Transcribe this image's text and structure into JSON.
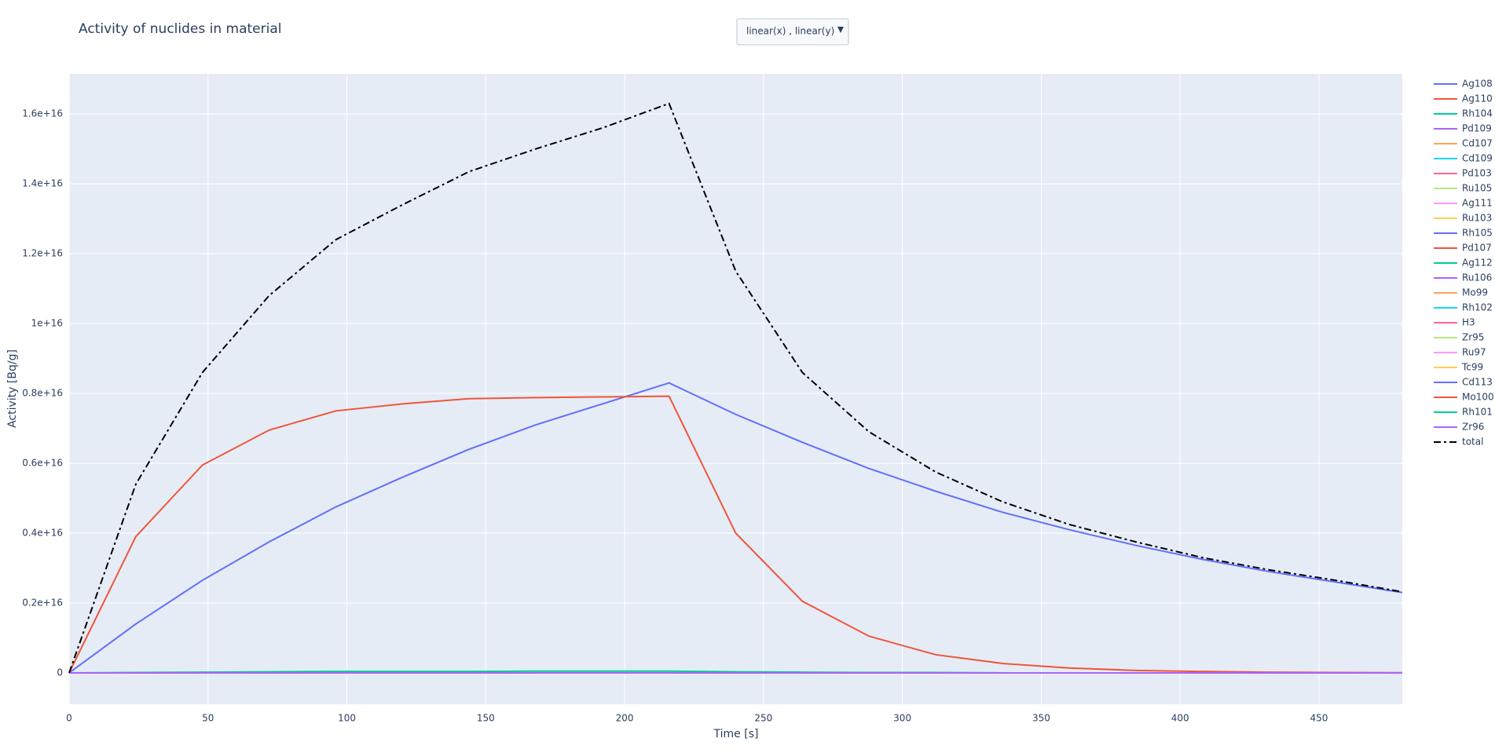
{
  "chart_data": {
    "type": "line",
    "title": "Activity of nuclides in material",
    "dropdown_label": "linear(x) , linear(y)",
    "x_label": "Time [s]",
    "y_label": "Activity [Bq/g]",
    "x": [
      0,
      24,
      48,
      72,
      96,
      120,
      144,
      168,
      192,
      216,
      240,
      264,
      288,
      312,
      336,
      360,
      384,
      408,
      432,
      456,
      480
    ],
    "xlim": [
      0,
      480
    ],
    "xticks": [
      0,
      50,
      100,
      150,
      200,
      250,
      300,
      350,
      400,
      450
    ],
    "ylim": [
      -900000000000000.0,
      1.715e+16
    ],
    "yticks": [
      0,
      {
        "value": 2000000000000000.0,
        "label": "0.2e+16"
      },
      {
        "value": 4000000000000000.0,
        "label": "0.4e+16"
      },
      {
        "value": 6000000000000000.0,
        "label": "0.6e+16"
      },
      {
        "value": 8000000000000000.0,
        "label": "0.8e+16"
      },
      {
        "value": 1e+16,
        "label": "1e+16"
      },
      {
        "value": 1.2e+16,
        "label": "1.2e+16"
      },
      {
        "value": 1.4e+16,
        "label": "1.4e+16"
      },
      {
        "value": 1.6e+16,
        "label": "1.6e+16"
      }
    ],
    "grid": true,
    "legend": "right",
    "series": [
      {
        "name": "Ag108",
        "color": "#636efa",
        "values": [
          0,
          0,
          0,
          0,
          0,
          0,
          0,
          0,
          0,
          0,
          0,
          0,
          0,
          0,
          0,
          0,
          0,
          0,
          0,
          0,
          0
        ]
      },
      {
        "name": "Ag110",
        "color": "#EF553B",
        "values": [
          0,
          0,
          0,
          0,
          0,
          0,
          0,
          0,
          0,
          0,
          0,
          0,
          0,
          0,
          0,
          0,
          0,
          0,
          0,
          0,
          0
        ]
      },
      {
        "name": "Rh104",
        "color": "#00cc96",
        "values": [
          0,
          10000000000000.0,
          20000000000000.0,
          30000000000000.0,
          40000000000000.0,
          40000000000000.0,
          40000000000000.0,
          50000000000000.0,
          50000000000000.0,
          50000000000000.0,
          30000000000000.0,
          20000000000000.0,
          10000000000000.0,
          10000000000000.0,
          0,
          0,
          0,
          0,
          0,
          0,
          0
        ]
      },
      {
        "name": "Pd109",
        "color": "#ab63fa",
        "values": [
          0,
          0,
          0,
          0,
          0,
          0,
          0,
          0,
          0,
          0,
          0,
          0,
          0,
          0,
          0,
          0,
          0,
          0,
          0,
          0,
          0
        ]
      },
      {
        "name": "Cd107",
        "color": "#FFA15A",
        "values": [
          0,
          0,
          0,
          0,
          0,
          0,
          0,
          0,
          0,
          0,
          0,
          0,
          0,
          0,
          0,
          0,
          0,
          0,
          0,
          0,
          0
        ]
      },
      {
        "name": "Cd109",
        "color": "#19d3f3",
        "values": [
          0,
          0,
          0,
          0,
          0,
          0,
          0,
          0,
          0,
          0,
          0,
          0,
          0,
          0,
          0,
          0,
          0,
          0,
          0,
          0,
          0
        ]
      },
      {
        "name": "Pd103",
        "color": "#FF6692",
        "values": [
          0,
          0,
          0,
          0,
          0,
          0,
          0,
          0,
          0,
          0,
          0,
          0,
          0,
          0,
          0,
          0,
          0,
          0,
          0,
          0,
          0
        ]
      },
      {
        "name": "Ru105",
        "color": "#B6E880",
        "values": [
          0,
          0,
          0,
          0,
          0,
          0,
          0,
          0,
          0,
          0,
          0,
          0,
          0,
          0,
          0,
          0,
          0,
          0,
          0,
          0,
          0
        ]
      },
      {
        "name": "Ag111",
        "color": "#FF97FF",
        "values": [
          0,
          0,
          0,
          0,
          0,
          0,
          0,
          0,
          0,
          0,
          0,
          0,
          0,
          0,
          0,
          0,
          0,
          0,
          0,
          0,
          0
        ]
      },
      {
        "name": "Ru103",
        "color": "#FECB52",
        "values": [
          0,
          0,
          0,
          0,
          0,
          0,
          0,
          0,
          0,
          0,
          0,
          0,
          0,
          0,
          0,
          0,
          0,
          0,
          0,
          0,
          0
        ]
      },
      {
        "name": "Rh105",
        "color": "#636efa",
        "values": [
          0,
          0,
          0,
          0,
          0,
          0,
          0,
          0,
          0,
          0,
          0,
          0,
          0,
          0,
          0,
          0,
          0,
          0,
          0,
          0,
          0
        ]
      },
      {
        "name": "Pd107",
        "color": "#EF553B",
        "values": [
          0,
          0,
          0,
          0,
          0,
          0,
          0,
          0,
          0,
          0,
          0,
          0,
          0,
          0,
          0,
          0,
          0,
          0,
          0,
          0,
          0
        ]
      },
      {
        "name": "Ag112",
        "color": "#00cc96",
        "values": [
          0,
          0,
          0,
          0,
          0,
          0,
          0,
          0,
          0,
          0,
          0,
          0,
          0,
          0,
          0,
          0,
          0,
          0,
          0,
          0,
          0
        ]
      },
      {
        "name": "Ru106",
        "color": "#ab63fa",
        "values": [
          0,
          0,
          0,
          0,
          0,
          0,
          0,
          0,
          0,
          0,
          0,
          0,
          0,
          0,
          0,
          0,
          0,
          0,
          0,
          0,
          0
        ]
      },
      {
        "name": "Mo99",
        "color": "#FFA15A",
        "values": [
          0,
          0,
          0,
          0,
          0,
          0,
          0,
          0,
          0,
          0,
          0,
          0,
          0,
          0,
          0,
          0,
          0,
          0,
          0,
          0,
          0
        ]
      },
      {
        "name": "Rh102",
        "color": "#19d3f3",
        "values": [
          0,
          0,
          0,
          0,
          0,
          0,
          0,
          0,
          0,
          0,
          0,
          0,
          0,
          0,
          0,
          0,
          0,
          0,
          0,
          0,
          0
        ]
      },
      {
        "name": "H3",
        "color": "#FF6692",
        "values": [
          0,
          0,
          0,
          0,
          0,
          0,
          0,
          0,
          0,
          0,
          0,
          0,
          0,
          0,
          0,
          0,
          0,
          0,
          0,
          0,
          0
        ]
      },
      {
        "name": "Zr95",
        "color": "#B6E880",
        "values": [
          0,
          0,
          0,
          0,
          0,
          0,
          0,
          0,
          0,
          0,
          0,
          0,
          0,
          0,
          0,
          0,
          0,
          0,
          0,
          0,
          0
        ]
      },
      {
        "name": "Ru97",
        "color": "#FF97FF",
        "values": [
          0,
          0,
          0,
          0,
          0,
          0,
          0,
          0,
          0,
          0,
          0,
          0,
          0,
          0,
          0,
          0,
          0,
          0,
          0,
          0,
          0
        ]
      },
      {
        "name": "Tc99",
        "color": "#FECB52",
        "values": [
          0,
          0,
          0,
          0,
          0,
          0,
          0,
          0,
          0,
          0,
          0,
          0,
          0,
          0,
          0,
          0,
          0,
          0,
          0,
          0,
          0
        ]
      },
      {
        "name": "Cd113",
        "color": "#636efa",
        "values": [
          0,
          1400000000000000.0,
          2650000000000000.0,
          3750000000000000.0,
          4750000000000000.0,
          5600000000000000.0,
          6400000000000000.0,
          7100000000000000.0,
          7700000000000000.0,
          8300000000000000.0,
          7400000000000000.0,
          6600000000000000.0,
          5850000000000000.0,
          5200000000000000.0,
          4600000000000000.0,
          4100000000000000.0,
          3650000000000000.0,
          3250000000000000.0,
          2900000000000000.0,
          2600000000000000.0,
          2300000000000000.0
        ]
      },
      {
        "name": "Mo100",
        "color": "#EF553B",
        "values": [
          0,
          3900000000000000.0,
          5950000000000000.0,
          6950000000000000.0,
          7500000000000000.0,
          7700000000000000.0,
          7850000000000000.0,
          7880000000000000.0,
          7900000000000000.0,
          7920000000000000.0,
          4000000000000000.0,
          2050000000000000.0,
          1050000000000000.0,
          520000000000000.0,
          270000000000000.0,
          140000000000000.0,
          70000000000000.0,
          40000000000000.0,
          20000000000000.0,
          10000000000000.0,
          5000000000000.0
        ]
      },
      {
        "name": "Rh101",
        "color": "#00cc96",
        "values": [
          0,
          0,
          0,
          0,
          0,
          0,
          0,
          0,
          0,
          0,
          0,
          0,
          0,
          0,
          0,
          0,
          0,
          0,
          0,
          0,
          0
        ]
      },
      {
        "name": "Zr96",
        "color": "#ab63fa",
        "values": [
          0,
          0,
          0,
          0,
          0,
          0,
          0,
          0,
          0,
          0,
          0,
          0,
          0,
          0,
          0,
          0,
          0,
          0,
          0,
          0,
          0
        ]
      },
      {
        "name": "total",
        "color": "#000000",
        "dash": "dashdot",
        "values": [
          0,
          5400000000000000.0,
          8600000000000000.0,
          1.08e+16,
          1.24e+16,
          1.34e+16,
          1.435e+16,
          1.5e+16,
          1.56e+16,
          1.63e+16,
          1.15e+16,
          8600000000000000.0,
          6900000000000000.0,
          5750000000000000.0,
          4900000000000000.0,
          4250000000000000.0,
          3750000000000000.0,
          3300000000000000.0,
          2950000000000000.0,
          2650000000000000.0,
          2320000000000000.0
        ]
      }
    ]
  }
}
